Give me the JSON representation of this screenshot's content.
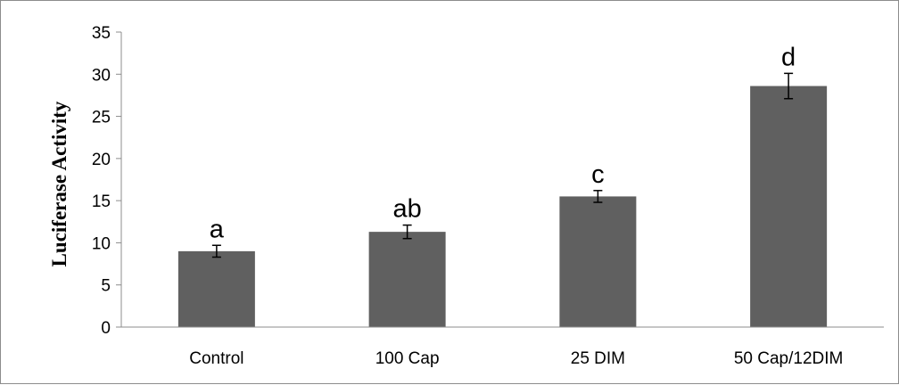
{
  "chart_data": {
    "type": "bar",
    "title": "",
    "xlabel": "",
    "ylabel": "Luciferase Activity",
    "ylim": [
      0,
      35
    ],
    "yticks": [
      0,
      5,
      10,
      15,
      20,
      25,
      30,
      35
    ],
    "grid": false,
    "legend": "none",
    "categories": [
      "Control",
      "100 Cap",
      "25 DIM",
      "50 Cap/12DIM"
    ],
    "values": [
      9.0,
      11.3,
      15.5,
      28.6
    ],
    "errors": [
      0.7,
      0.8,
      0.7,
      1.5
    ],
    "significance_labels": [
      "a",
      "ab",
      "c",
      "d"
    ],
    "bar_color": "#606060"
  }
}
